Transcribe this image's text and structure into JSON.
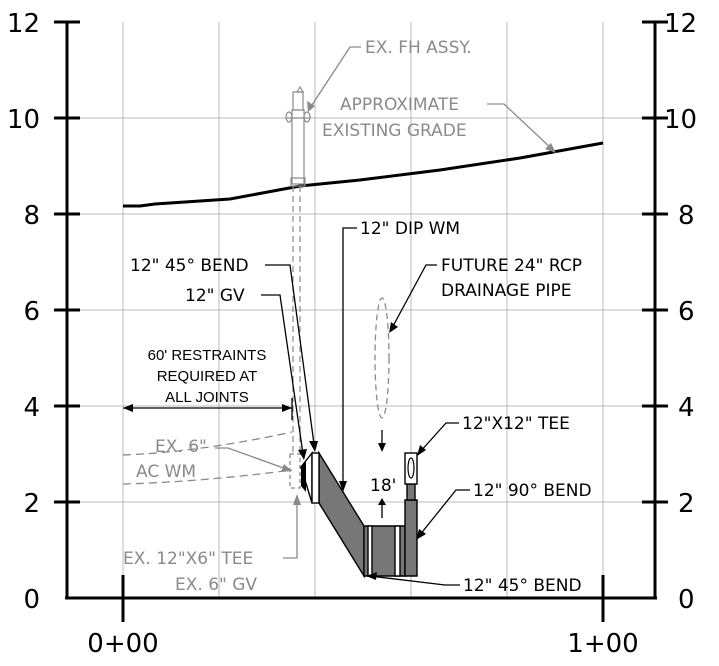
{
  "axes": {
    "y_ticks": [
      "0",
      "2",
      "4",
      "6",
      "8",
      "10",
      "12"
    ],
    "x_ticks": [
      "0+00",
      "1+00"
    ]
  },
  "labels": {
    "ex_fh_assy": "EX. FH ASSY.",
    "approx_grade_1": "APPROXIMATE",
    "approx_grade_2": "EXISTING GRADE",
    "dip_wm": "12\" DIP WM",
    "bend_45_top": "12\" 45° BEND",
    "gv_12": "12\" GV",
    "future_rcp_1": "FUTURE 24\" RCP",
    "future_rcp_2": "DRAINAGE PIPE",
    "restraints_1": "60' RESTRAINTS",
    "restraints_2": "REQUIRED AT",
    "restraints_3": "ALL JOINTS",
    "tee_12x12": "12\"X12\" TEE",
    "ex_6_ac_1": "EX. 6\"",
    "ex_6_ac_2": "AC WM",
    "bend_90": "12\" 90° BEND",
    "clearance": "18'",
    "ex_tee": "EX. 12\"X6\" TEE",
    "ex_gv": "EX. 6\" GV",
    "bend_45_bottom": "12\" 45° BEND"
  },
  "colors": {
    "pipe_fill": "#777777",
    "existing": "#8a8a8a",
    "grid": "#b8b8b8"
  }
}
